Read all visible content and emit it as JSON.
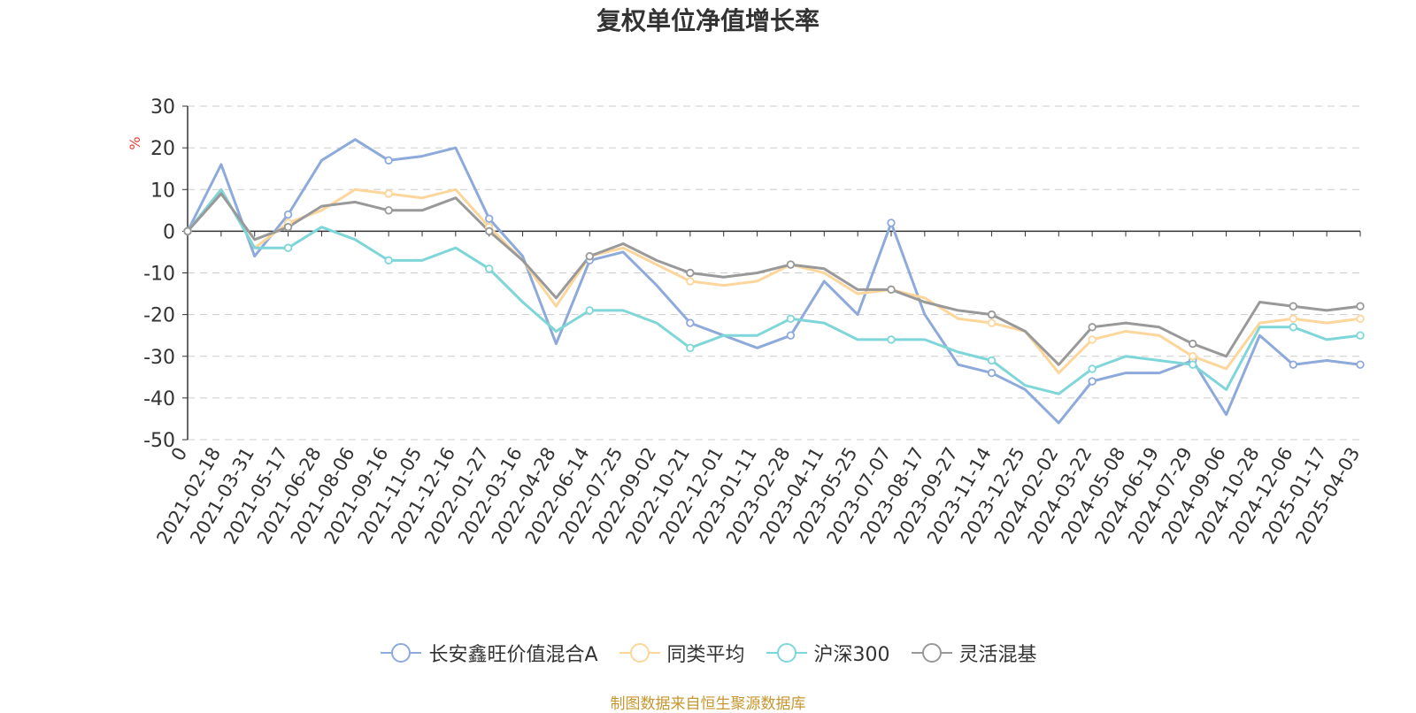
{
  "chart_data": {
    "type": "line",
    "title": "复权单位净值增长率",
    "ylabel": "%",
    "xlabel": "",
    "ylim": [
      -50,
      30
    ],
    "yticks": [
      30,
      20,
      10,
      0,
      -10,
      -20,
      -30,
      -40,
      -50
    ],
    "categories": [
      "0",
      "2021-02-18",
      "2021-03-31",
      "2021-05-17",
      "2021-06-28",
      "2021-08-06",
      "2021-09-16",
      "2021-11-05",
      "2021-12-16",
      "2022-01-27",
      "2022-03-16",
      "2022-04-28",
      "2022-06-14",
      "2022-07-25",
      "2022-09-02",
      "2022-10-21",
      "2022-12-01",
      "2023-01-11",
      "2023-02-28",
      "2023-04-11",
      "2023-05-25",
      "2023-07-07",
      "2023-08-17",
      "2023-09-27",
      "2023-11-14",
      "2023-12-25",
      "2024-02-02",
      "2024-03-22",
      "2024-05-08",
      "2024-06-19",
      "2024-07-29",
      "2024-09-06",
      "2024-10-28",
      "2024-12-06",
      "2025-01-17",
      "2025-04-03"
    ],
    "series": [
      {
        "name": "长安鑫旺价值混合A",
        "color": "#8eaadb",
        "values": [
          0,
          16,
          -6,
          4,
          17,
          22,
          17,
          18,
          20,
          3,
          -6,
          -27,
          -7,
          -5,
          -13,
          -22,
          -25,
          -28,
          -25,
          -12,
          -20,
          2,
          -20,
          -32,
          -34,
          -38,
          -46,
          -36,
          -34,
          -34,
          -31,
          -44,
          -25,
          -32,
          -31,
          -32
        ]
      },
      {
        "name": "同类平均",
        "color": "#fcd69b",
        "values": [
          0,
          10,
          -4,
          2,
          5,
          10,
          9,
          8,
          10,
          1,
          -7,
          -18,
          -6,
          -4,
          -8,
          -12,
          -13,
          -12,
          -8,
          -10,
          -15,
          -14,
          -16,
          -21,
          -22,
          -24,
          -34,
          -26,
          -24,
          -25,
          -30,
          -33,
          -22,
          -21,
          -22,
          -21
        ]
      },
      {
        "name": "沪深300",
        "color": "#7fd6d9",
        "values": [
          0,
          10,
          -4,
          -4,
          1,
          -2,
          -7,
          -7,
          -4,
          -9,
          -17,
          -24,
          -19,
          -19,
          -22,
          -28,
          -25,
          -25,
          -21,
          -22,
          -26,
          -26,
          -26,
          -29,
          -31,
          -37,
          -39,
          -33,
          -30,
          -31,
          -32,
          -38,
          -23,
          -23,
          -26,
          -25
        ]
      },
      {
        "name": "灵活混基",
        "color": "#999999",
        "values": [
          0,
          9,
          -2,
          1,
          6,
          7,
          5,
          5,
          8,
          0,
          -7,
          -16,
          -6,
          -3,
          -7,
          -10,
          -11,
          -10,
          -8,
          -9,
          -14,
          -14,
          -17,
          -19,
          -20,
          -24,
          -32,
          -23,
          -22,
          -23,
          -27,
          -30,
          -17,
          -18,
          -19,
          -18
        ]
      }
    ],
    "legend_position": "bottom",
    "grid": true
  },
  "source_note": "制图数据来自恒生聚源数据库"
}
